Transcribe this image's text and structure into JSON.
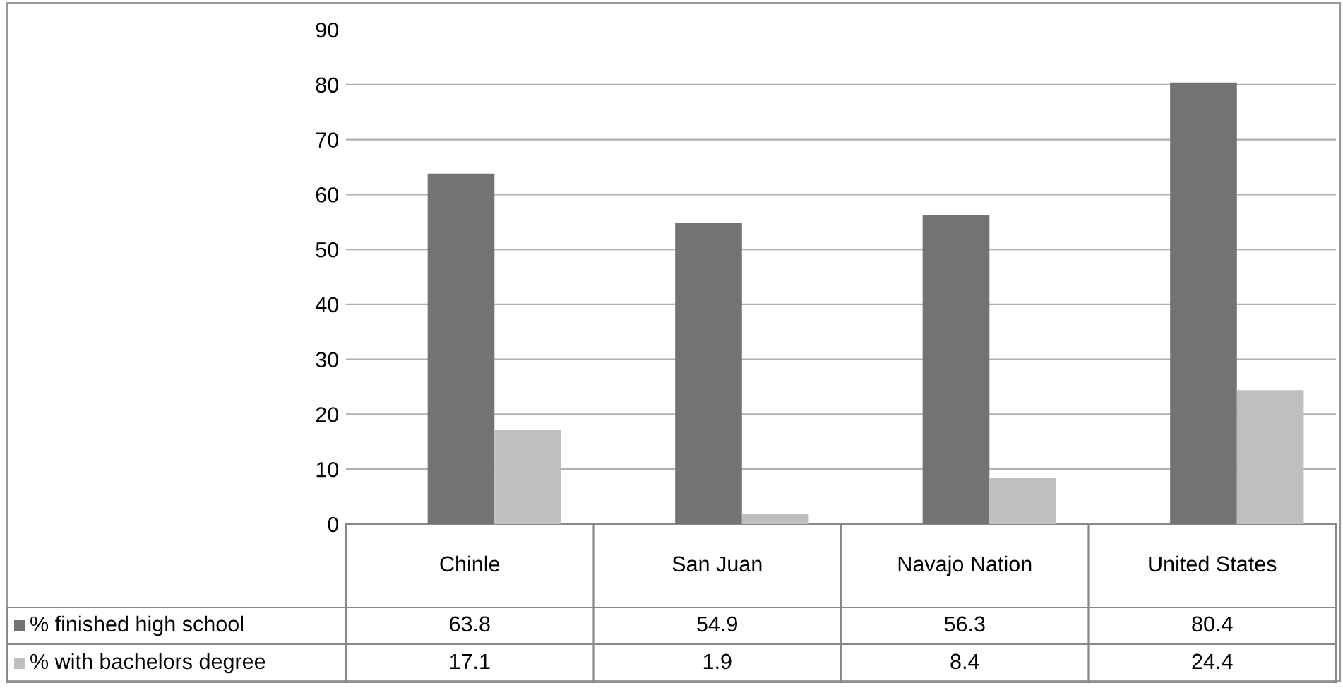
{
  "chart_data": {
    "type": "bar",
    "categories": [
      "Chinle",
      "San Juan",
      "Navajo Nation",
      "United States"
    ],
    "series": [
      {
        "name": "% finished high school",
        "color": "#737373",
        "values": [
          63.8,
          54.9,
          56.3,
          80.4
        ]
      },
      {
        "name": "% with bachelors degree",
        "color": "#bfbfbf",
        "values": [
          17.1,
          1.9,
          8.4,
          24.4
        ]
      }
    ],
    "ylim": [
      0,
      90
    ],
    "yticks": [
      0,
      10,
      20,
      30,
      40,
      50,
      60,
      70,
      80,
      90
    ],
    "grid": "y",
    "legend": "bottom",
    "data_labels": true
  }
}
